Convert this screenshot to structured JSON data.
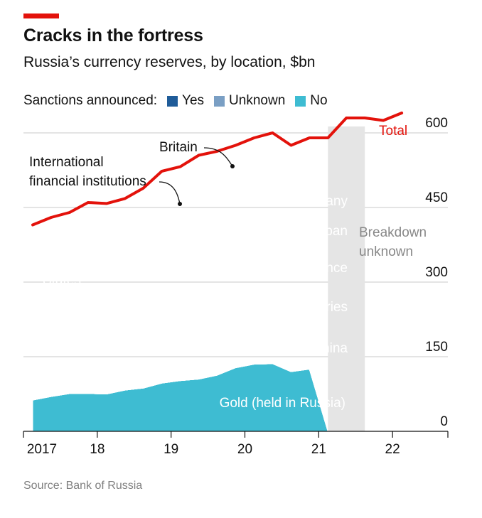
{
  "title": "Cracks in the fortress",
  "subtitle": "Russia’s currency reserves, by location, $bn",
  "legend": {
    "heading": "Sanctions announced:",
    "items": [
      {
        "label": "Yes",
        "color": "#1f5c99"
      },
      {
        "label": "Unknown",
        "color": "#7a9fc4"
      },
      {
        "label": "No",
        "color": "#3ebcd2"
      }
    ]
  },
  "source": "Source: Bank of Russia",
  "chart_data": {
    "type": "area",
    "stacked": true,
    "yticks": [
      0,
      150,
      300,
      450,
      600
    ],
    "ylim": [
      0,
      620
    ],
    "xlim": [
      2017.0,
      2022.75
    ],
    "xticks": [
      2017,
      2018,
      2019,
      2020,
      2021,
      2022
    ],
    "xlabels": [
      {
        "label": "2017",
        "x": 2017.25
      },
      {
        "label": "18",
        "x": 2018.0
      },
      {
        "label": "19",
        "x": 2019.0
      },
      {
        "label": "20",
        "x": 2020.0
      },
      {
        "label": "21",
        "x": 2021.0
      },
      {
        "label": "22",
        "x": 2022.0
      }
    ],
    "x": [
      2017.125,
      2017.375,
      2017.625,
      2017.875,
      2018.125,
      2018.375,
      2018.625,
      2018.875,
      2019.125,
      2019.375,
      2019.625,
      2019.875,
      2020.125,
      2020.375,
      2020.625,
      2020.875,
      2021.125
    ],
    "series": [
      {
        "name": "Gold (held in Russia)",
        "group": "No",
        "color": "#3ebcd2",
        "values": [
          63,
          70,
          76,
          76,
          75,
          83,
          87,
          97,
          102,
          105,
          113,
          128,
          135,
          136,
          120,
          125,
          0
        ]
      },
      {
        "name": "China",
        "group": "No",
        "color": "#3ebcd2",
        "values": [
          0,
          0,
          0,
          0,
          0,
          0,
          0,
          0,
          0,
          0,
          0,
          0,
          0,
          0,
          0,
          0,
          0
        ]
      },
      {
        "name": "Other countries",
        "group": "Unknown",
        "color": "#7a9fc4",
        "values": [
          0,
          0,
          0,
          0,
          0,
          0,
          0,
          0,
          0,
          0,
          0,
          0,
          0,
          0,
          0,
          0,
          0
        ]
      },
      {
        "name": "France",
        "group": "Yes",
        "color": "#1f5c99",
        "values": [
          0,
          0,
          0,
          0,
          0,
          0,
          0,
          0,
          0,
          0,
          0,
          0,
          0,
          0,
          0,
          0,
          0
        ]
      },
      {
        "name": "Japan",
        "group": "Yes",
        "color": "#1f5c99",
        "values": [
          0,
          0,
          0,
          0,
          0,
          0,
          0,
          0,
          0,
          0,
          0,
          0,
          0,
          0,
          0,
          0,
          0
        ]
      },
      {
        "name": "Germany",
        "group": "Yes",
        "color": "#1f5c99",
        "values": [
          0,
          0,
          0,
          0,
          0,
          0,
          0,
          0,
          0,
          0,
          0,
          0,
          0,
          0,
          0,
          0,
          0
        ]
      },
      {
        "name": "United States",
        "group": "Yes",
        "color": "#1f5c99",
        "values": [
          0,
          0,
          0,
          0,
          0,
          0,
          0,
          0,
          0,
          0,
          0,
          0,
          0,
          0,
          0,
          0,
          0
        ]
      },
      {
        "name": "Britain",
        "group": "Yes",
        "color": "#1f5c99",
        "values": [
          0,
          0,
          0,
          0,
          0,
          0,
          0,
          0,
          0,
          0,
          0,
          0,
          0,
          0,
          0,
          0,
          0
        ]
      },
      {
        "name": "International financial institutions",
        "group": "Yes",
        "color": "#1f5c99",
        "values": [
          0,
          0,
          0,
          0,
          0,
          0,
          0,
          0,
          0,
          0,
          0,
          0,
          0,
          0,
          0,
          0,
          0
        ]
      }
    ],
    "total": {
      "name": "Total",
      "color": "#e3120b",
      "x": [
        2017.125,
        2017.375,
        2017.625,
        2017.875,
        2018.125,
        2018.375,
        2018.625,
        2018.875,
        2019.125,
        2019.375,
        2019.625,
        2019.875,
        2020.125,
        2020.375,
        2020.625,
        2020.875,
        2021.125,
        2021.375,
        2021.625,
        2021.875,
        2022.125
      ],
      "values": [
        415,
        430,
        440,
        460,
        458,
        468,
        489,
        523,
        532,
        555,
        563,
        575,
        590,
        600,
        575,
        590,
        590,
        630,
        630,
        625,
        640
      ]
    },
    "unknown_period": {
      "label": "Breakdown unknown",
      "x0": 2021.125,
      "x1": 2021.625
    }
  }
}
